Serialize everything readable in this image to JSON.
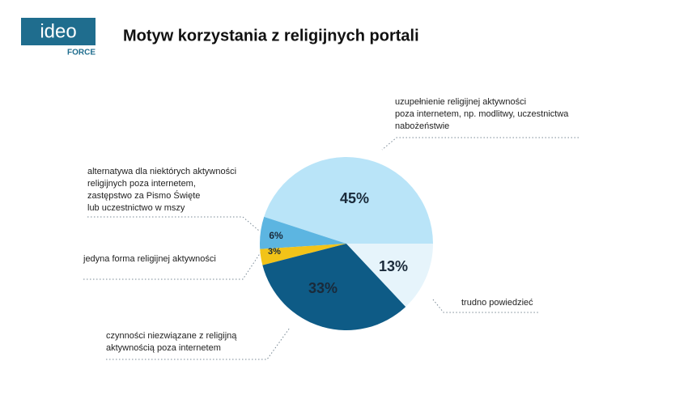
{
  "logo": {
    "name": "ideo",
    "sub": "FORCE"
  },
  "chart_data": {
    "type": "pie",
    "title": "Motyw korzystania z religijnych portali",
    "categories": [
      [
        "uzupełnienie religijnej aktywności",
        "poza internetem, np. modlitwy, uczestnictwa",
        "nabożeństwie"
      ],
      [
        "alternatywa dla niektórych aktywności",
        "religijnych poza internetem,",
        "zastępstwo za Pismo Święte",
        "lub uczestnictwo w mszy"
      ],
      [
        "jedyna forma religijnej aktywności"
      ],
      [
        "czynności niezwiązane z religijną",
        "aktywnością poza internetem"
      ],
      [
        "trudno powiedzieć"
      ]
    ],
    "values": [
      45,
      6,
      3,
      33,
      13
    ],
    "value_labels": [
      "45%",
      "6%",
      "3%",
      "33%",
      "13%"
    ],
    "colors": [
      "#b9e4f8",
      "#5cb5e1",
      "#f2c318",
      "#0e5b86",
      "#e6f4fb"
    ]
  }
}
